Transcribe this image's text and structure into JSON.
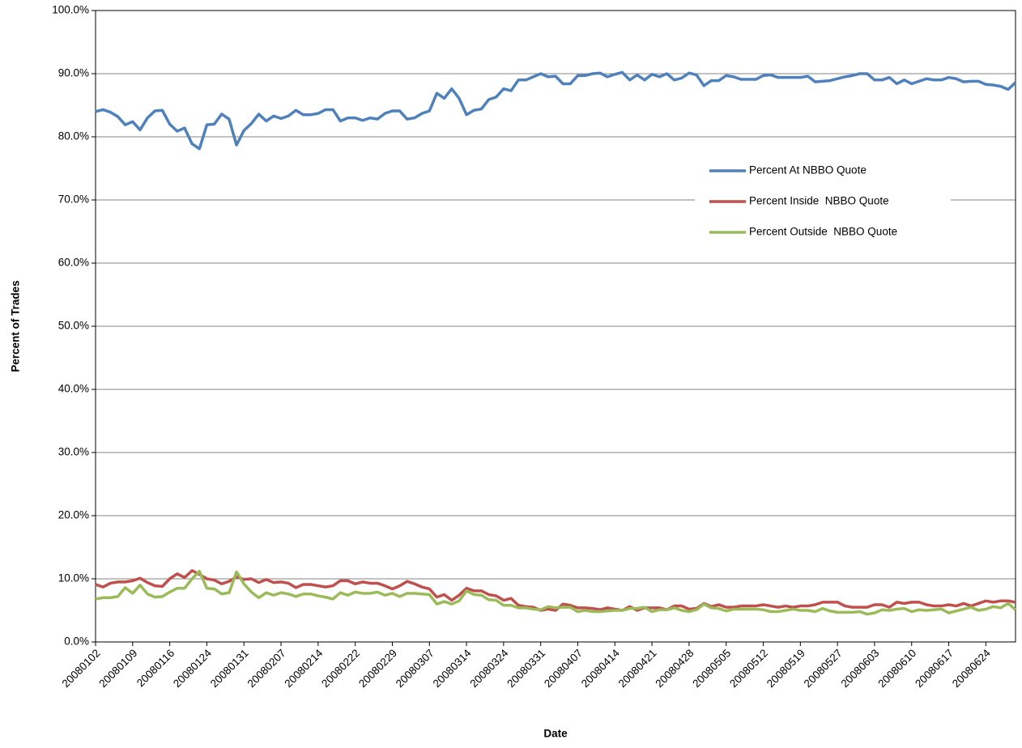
{
  "chart_data": {
    "type": "line",
    "x_label": "Date",
    "y_label": "Percent of Trades",
    "categories": [
      "20080102",
      null,
      null,
      null,
      null,
      "20080109",
      null,
      null,
      null,
      null,
      "20080116",
      null,
      null,
      null,
      null,
      "20080124",
      null,
      null,
      null,
      null,
      "20080131",
      null,
      null,
      null,
      null,
      "20080207",
      null,
      null,
      null,
      null,
      "20080214",
      null,
      null,
      null,
      null,
      "20080222",
      null,
      null,
      null,
      null,
      "20080229",
      null,
      null,
      null,
      null,
      "20080307",
      null,
      null,
      null,
      null,
      "20080314",
      null,
      null,
      null,
      null,
      "20080324",
      null,
      null,
      null,
      null,
      "20080331",
      null,
      null,
      null,
      null,
      "20080407",
      null,
      null,
      null,
      null,
      "20080414",
      null,
      null,
      null,
      null,
      "20080421",
      null,
      null,
      null,
      null,
      "20080428",
      null,
      null,
      null,
      null,
      "20080505",
      null,
      null,
      null,
      null,
      "20080512",
      null,
      null,
      null,
      null,
      "20080519",
      null,
      null,
      null,
      null,
      "20080527",
      null,
      null,
      null,
      null,
      "20080603",
      null,
      null,
      null,
      null,
      "20080610",
      null,
      null,
      null,
      null,
      "20080617",
      null,
      null,
      null,
      null,
      "20080624",
      null,
      null,
      null,
      null
    ],
    "series": [
      {
        "name": "Percent At NBBO Quote",
        "color": "#4f81bd",
        "values": [
          84.0,
          84.3,
          83.9,
          83.2,
          81.9,
          82.4,
          81.1,
          83.0,
          84.1,
          84.2,
          82.0,
          80.9,
          81.4,
          78.9,
          78.1,
          81.9,
          82.0,
          83.6,
          82.8,
          78.7,
          81.0,
          82.1,
          83.6,
          82.5,
          83.3,
          82.9,
          83.3,
          84.2,
          83.5,
          83.5,
          83.7,
          84.3,
          84.3,
          82.5,
          83.0,
          83.0,
          82.6,
          83.0,
          82.8,
          83.7,
          84.1,
          84.1,
          82.8,
          83.0,
          83.7,
          84.1,
          86.9,
          86.1,
          87.6,
          86.1,
          83.5,
          84.2,
          84.4,
          85.9,
          86.3,
          87.6,
          87.3,
          89.0,
          89.0,
          89.5,
          90.0,
          89.5,
          89.6,
          88.4,
          88.4,
          89.7,
          89.7,
          90.0,
          90.1,
          89.5,
          89.9,
          90.2,
          89.0,
          89.8,
          89.0,
          89.9,
          89.5,
          90.0,
          89.0,
          89.3,
          90.1,
          89.8,
          88.1,
          88.9,
          88.9,
          89.7,
          89.5,
          89.1,
          89.1,
          89.1,
          89.7,
          89.8,
          89.4,
          89.4,
          89.4,
          89.4,
          89.6,
          88.7,
          88.8,
          88.9,
          89.2,
          89.5,
          89.7,
          90.0,
          90.0,
          89.0,
          89.0,
          89.4,
          88.4,
          89.0,
          88.4,
          88.8,
          89.2,
          89.0,
          89.0,
          89.4,
          89.2,
          88.7,
          88.8,
          88.8,
          88.3,
          88.2,
          88.0,
          87.5,
          88.6
        ]
      },
      {
        "name": "Percent Inside  NBBO Quote",
        "color": "#c0504d",
        "values": [
          9.1,
          8.7,
          9.3,
          9.5,
          9.5,
          9.7,
          10.1,
          9.4,
          8.9,
          8.8,
          10.0,
          10.8,
          10.2,
          11.3,
          10.7,
          10.0,
          9.8,
          9.2,
          9.6,
          10.3,
          9.9,
          10.0,
          9.4,
          9.9,
          9.4,
          9.5,
          9.3,
          8.6,
          9.1,
          9.1,
          8.9,
          8.7,
          8.9,
          9.7,
          9.7,
          9.2,
          9.5,
          9.3,
          9.3,
          8.9,
          8.4,
          8.9,
          9.6,
          9.2,
          8.7,
          8.4,
          7.1,
          7.5,
          6.6,
          7.4,
          8.5,
          8.1,
          8.1,
          7.5,
          7.3,
          6.6,
          6.9,
          5.8,
          5.6,
          5.5,
          5.0,
          5.2,
          5.0,
          6.0,
          5.8,
          5.4,
          5.4,
          5.3,
          5.1,
          5.4,
          5.2,
          5.0,
          5.6,
          5.0,
          5.4,
          5.4,
          5.4,
          5.1,
          5.7,
          5.7,
          5.2,
          5.3,
          6.1,
          5.6,
          5.9,
          5.5,
          5.5,
          5.7,
          5.7,
          5.7,
          5.9,
          5.7,
          5.5,
          5.7,
          5.5,
          5.7,
          5.7,
          5.9,
          6.3,
          6.3,
          6.3,
          5.7,
          5.5,
          5.5,
          5.5,
          5.9,
          5.9,
          5.5,
          6.3,
          6.1,
          6.3,
          6.3,
          5.9,
          5.7,
          5.7,
          5.9,
          5.7,
          6.1,
          5.7,
          6.1,
          6.5,
          6.3,
          6.5,
          6.5,
          6.3
        ]
      },
      {
        "name": "Percent Outside  NBBO Quote",
        "color": "#9bbb59",
        "values": [
          6.8,
          7.0,
          7.0,
          7.2,
          8.6,
          7.7,
          9.0,
          7.6,
          7.1,
          7.2,
          7.9,
          8.5,
          8.5,
          10.0,
          11.2,
          8.5,
          8.4,
          7.6,
          7.8,
          11.1,
          9.2,
          7.9,
          7.0,
          7.8,
          7.4,
          7.8,
          7.6,
          7.2,
          7.6,
          7.6,
          7.3,
          7.1,
          6.8,
          7.8,
          7.4,
          7.9,
          7.7,
          7.7,
          7.9,
          7.4,
          7.7,
          7.2,
          7.7,
          7.7,
          7.6,
          7.5,
          6.0,
          6.4,
          6.0,
          6.5,
          8.1,
          7.5,
          7.4,
          6.7,
          6.6,
          5.8,
          5.8,
          5.4,
          5.4,
          5.2,
          5.1,
          5.6,
          5.4,
          5.5,
          5.5,
          4.8,
          5.0,
          4.8,
          4.8,
          4.9,
          5.0,
          5.0,
          5.3,
          5.3,
          5.5,
          4.8,
          5.1,
          5.1,
          5.4,
          5.0,
          4.8,
          5.1,
          6.0,
          5.4,
          5.3,
          4.9,
          5.2,
          5.2,
          5.2,
          5.2,
          5.1,
          4.8,
          4.8,
          5.0,
          5.2,
          5.0,
          5.0,
          4.8,
          5.3,
          4.9,
          4.7,
          4.7,
          4.7,
          4.8,
          4.4,
          4.6,
          5.1,
          5.0,
          5.2,
          5.3,
          4.8,
          5.1,
          5.0,
          5.1,
          5.2,
          4.6,
          4.9,
          5.2,
          5.5,
          5.0,
          5.2,
          5.6,
          5.4,
          6.1,
          5.1
        ]
      }
    ],
    "ylim": [
      0,
      100
    ],
    "yticks": [
      {
        "value": 0,
        "label": "0.0%"
      },
      {
        "value": 10,
        "label": "10.0%"
      },
      {
        "value": 20,
        "label": "20.0%"
      },
      {
        "value": 30,
        "label": "30.0%"
      },
      {
        "value": 40,
        "label": "40.0%"
      },
      {
        "value": 50,
        "label": "50.0%"
      },
      {
        "value": 60,
        "label": "60.0%"
      },
      {
        "value": 70,
        "label": "70.0%"
      },
      {
        "value": 80,
        "label": "80.0%"
      },
      {
        "value": 90,
        "label": "90.0%"
      },
      {
        "value": 100,
        "label": "100.0%"
      }
    ],
    "grid": true,
    "legend": "right"
  }
}
